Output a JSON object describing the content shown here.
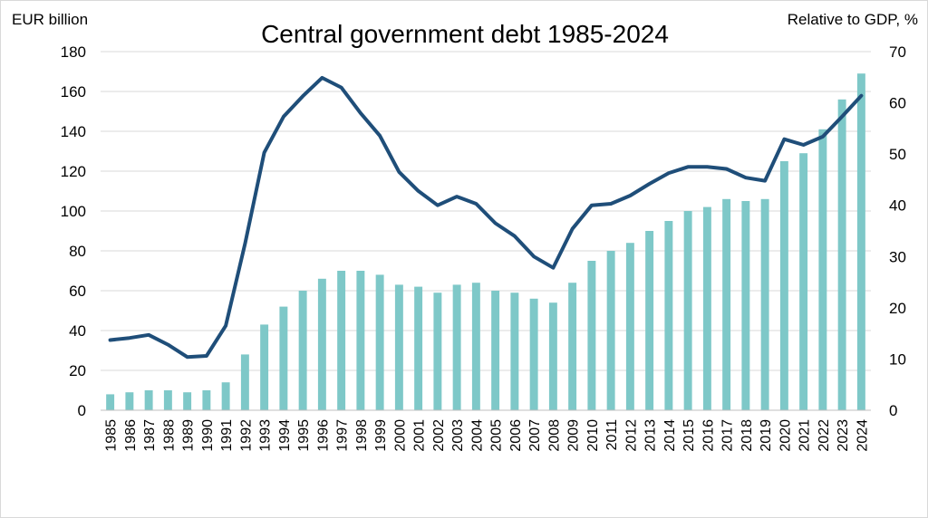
{
  "chart_data": {
    "type": "bar",
    "title": "Central government debt 1985-2024",
    "ylabel": "EUR billion",
    "y2label": "Relative to GDP, %",
    "ylim": [
      0,
      180
    ],
    "y2lim": [
      0,
      70
    ],
    "yticks": [
      0,
      20,
      40,
      60,
      80,
      100,
      120,
      140,
      160,
      180
    ],
    "y2ticks": [
      0,
      10,
      20,
      30,
      40,
      50,
      60,
      70
    ],
    "grid": true,
    "legend": "none",
    "categories": [
      "1985",
      "1986",
      "1987",
      "1988",
      "1989",
      "1990",
      "1991",
      "1992",
      "1993",
      "1994",
      "1995",
      "1996",
      "1997",
      "1998",
      "1999",
      "2000",
      "2001",
      "2002",
      "2003",
      "2004",
      "2005",
      "2006",
      "2007",
      "2008",
      "2009",
      "2010",
      "2011",
      "2012",
      "2013",
      "2014",
      "2015",
      "2016",
      "2017",
      "2018",
      "2019",
      "2020",
      "2021",
      "2022",
      "2023",
      "2024"
    ],
    "series": [
      {
        "type": "bar",
        "axis": "left",
        "color": "#7ec8c8",
        "values": [
          8,
          9,
          10,
          10,
          9,
          10,
          14,
          28,
          43,
          52,
          60,
          66,
          70,
          70,
          68,
          63,
          62,
          59,
          63,
          64,
          60,
          59,
          56,
          54,
          64,
          75,
          80,
          84,
          90,
          95,
          100,
          102,
          106,
          105,
          106,
          125,
          129,
          141,
          156,
          169
        ]
      },
      {
        "type": "line",
        "axis": "right",
        "color": "#1f4e79",
        "values": [
          13.7,
          14.1,
          14.7,
          12.8,
          10.4,
          10.6,
          16.5,
          32.5,
          50.3,
          57.3,
          61.3,
          64.9,
          63.0,
          58.0,
          53.6,
          46.5,
          42.8,
          40.0,
          41.7,
          40.3,
          36.5,
          34.0,
          30.0,
          27.8,
          35.4,
          40.0,
          40.3,
          41.9,
          44.2,
          46.3,
          47.5,
          47.5,
          47.1,
          45.4,
          44.8,
          52.9,
          51.8,
          53.4,
          57.3,
          61.4
        ]
      }
    ]
  }
}
